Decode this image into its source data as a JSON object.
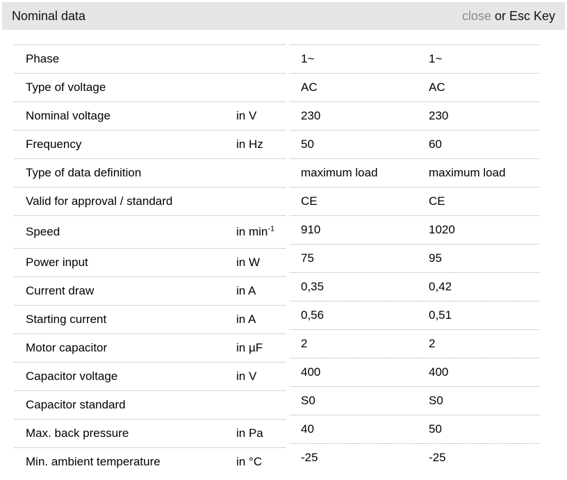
{
  "header": {
    "title": "Nominal data",
    "close_label": "close",
    "close_suffix": " or Esc Key"
  },
  "colors": {
    "header_bg": "#e6e6e6",
    "row_border_dotted": "#a9a9a9",
    "close_link_gray": "#8a8a8a",
    "text": "#000000"
  },
  "table": {
    "rows": [
      {
        "label": "Phase",
        "unit": "",
        "unit_sup": "",
        "value1": "1~",
        "value2": "1~"
      },
      {
        "label": "Type of voltage",
        "unit": "",
        "unit_sup": "",
        "value1": "AC",
        "value2": "AC"
      },
      {
        "label": "Nominal voltage",
        "unit": "in V",
        "unit_sup": "",
        "value1": "230",
        "value2": "230"
      },
      {
        "label": "Frequency",
        "unit": "in Hz",
        "unit_sup": "",
        "value1": "50",
        "value2": "60"
      },
      {
        "label": "Type of data definition",
        "unit": "",
        "unit_sup": "",
        "value1": "maximum load",
        "value2": "maximum load"
      },
      {
        "label": "Valid for approval / standard",
        "unit": "",
        "unit_sup": "",
        "value1": "CE",
        "value2": "CE"
      },
      {
        "label": "Speed",
        "unit": "in min",
        "unit_sup": "-1",
        "value1": "910",
        "value2": "1020"
      },
      {
        "label": "Power input",
        "unit": "in W",
        "unit_sup": "",
        "value1": "75",
        "value2": "95"
      },
      {
        "label": "Current draw",
        "unit": "in A",
        "unit_sup": "",
        "value1": "0,35",
        "value2": "0,42"
      },
      {
        "label": "Starting current",
        "unit": "in A",
        "unit_sup": "",
        "value1": "0,56",
        "value2": "0,51"
      },
      {
        "label": "Motor capacitor",
        "unit": "in µF",
        "unit_sup": "",
        "value1": "2",
        "value2": "2"
      },
      {
        "label": "Capacitor voltage",
        "unit": "in V",
        "unit_sup": "",
        "value1": "400",
        "value2": "400"
      },
      {
        "label": "Capacitor standard",
        "unit": "",
        "unit_sup": "",
        "value1": "S0",
        "value2": "S0"
      },
      {
        "label": "Max. back pressure",
        "unit": "in Pa",
        "unit_sup": "",
        "value1": "40",
        "value2": "50"
      },
      {
        "label": "Min. ambient temperature",
        "unit": "in °C",
        "unit_sup": "",
        "value1": "-25",
        "value2": "-25"
      }
    ]
  }
}
